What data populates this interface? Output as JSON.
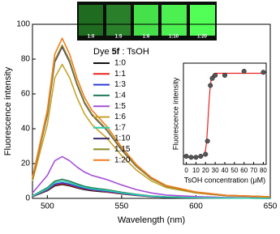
{
  "chart_data": [
    {
      "type": "line",
      "x_label": "Wavelength (nm)",
      "y_label": "Fluorescence intensity",
      "xlim": [
        490,
        650
      ],
      "xticks": [
        500,
        550,
        600,
        650
      ],
      "ylim": [
        0,
        100
      ],
      "yticks": [
        0,
        20,
        40,
        60,
        80,
        100
      ],
      "legend_title": {
        "prefix": "Dye",
        "bold": "5f",
        "suffix": ": TsOH"
      },
      "photo_labels": [
        "1:0",
        "1:5",
        "1:6",
        "1:10",
        "1:20"
      ],
      "x": [
        490,
        500,
        505,
        510,
        515,
        520,
        525,
        530,
        535,
        540,
        550,
        560,
        570,
        580,
        600,
        620,
        650
      ],
      "series": [
        {
          "name": "1:0",
          "color": "#111111",
          "values": [
            1,
            4.4,
            7.2,
            8,
            7.2,
            6,
            5,
            4.4,
            4,
            3.6,
            2.6,
            1.7,
            1,
            0.6,
            0.3,
            0.2,
            0.1
          ]
        },
        {
          "name": "1:1",
          "color": "#e8231f",
          "values": [
            1.1,
            4.7,
            7.7,
            8.5,
            7.7,
            6.4,
            5.4,
            4.7,
            4.3,
            3.8,
            2.7,
            1.8,
            1.1,
            0.7,
            0.3,
            0.2,
            0.1
          ]
        },
        {
          "name": "1:3",
          "color": "#2b3bd9",
          "values": [
            1.2,
            5,
            8.1,
            9,
            8.1,
            6.8,
            5.7,
            5,
            4.5,
            4.1,
            2.9,
            1.9,
            1.2,
            0.7,
            0.4,
            0.2,
            0.1
          ]
        },
        {
          "name": "1:4",
          "color": "#1f7a5a",
          "values": [
            1.4,
            6.1,
            9.9,
            11,
            9.9,
            8.3,
            6.9,
            6.1,
            5.5,
            5,
            3.5,
            2.3,
            1.4,
            0.9,
            0.4,
            0.2,
            0.1
          ]
        },
        {
          "name": "1:5",
          "color": "#a64fd8",
          "values": [
            3.1,
            13.2,
            21.6,
            24,
            21.6,
            18,
            15.1,
            13.2,
            12,
            10.8,
            7.7,
            5,
            3.1,
            1.9,
            1,
            0.5,
            0.2
          ]
        },
        {
          "name": "1:6",
          "color": "#c8a227",
          "values": [
            10,
            42.4,
            69.3,
            77,
            69.3,
            57.8,
            48.5,
            42.4,
            38.5,
            34.7,
            24.6,
            16.2,
            10,
            6.2,
            3.1,
            1.5,
            0.8
          ]
        },
        {
          "name": "1:7",
          "color": "#2fcfa8",
          "values": [
            1.3,
            5.5,
            9,
            10,
            9,
            7.5,
            6.3,
            5.5,
            5,
            4.5,
            3.2,
            2.1,
            1.3,
            0.8,
            0.4,
            0.2,
            0.1
          ]
        },
        {
          "name": "1:10",
          "color": "#3a2a6e",
          "values": [
            11.3,
            47.9,
            78.3,
            87,
            78.3,
            65.3,
            54.8,
            47.9,
            43.5,
            39.2,
            27.8,
            18.3,
            11.3,
            7,
            3.5,
            1.7,
            0.9
          ]
        },
        {
          "name": "1:15",
          "color": "#8a8a2a",
          "values": [
            11.4,
            48.4,
            79.2,
            88,
            79.2,
            66,
            55.4,
            48.4,
            44,
            39.6,
            28.2,
            18.5,
            11.4,
            7,
            3.5,
            1.8,
            0.9
          ]
        },
        {
          "name": "1:20",
          "color": "#f07f1e",
          "values": [
            12,
            50.6,
            82.8,
            92,
            82.8,
            69,
            58,
            50.6,
            46,
            41.4,
            29.4,
            19.3,
            12,
            7.4,
            3.7,
            1.8,
            0.9
          ]
        }
      ]
    },
    {
      "type": "scatter",
      "x_label": "TsOH concentration (μM)",
      "y_label": "Fluorescence intensity",
      "xlim": [
        -3,
        83
      ],
      "xticks": [
        0,
        10,
        20,
        30,
        40,
        50,
        60,
        70,
        80
      ],
      "ylim": [
        0,
        100
      ],
      "points": {
        "color": "#555555",
        "x": [
          0,
          5,
          10,
          15,
          20,
          22,
          25,
          27,
          30,
          40,
          60,
          80
        ],
        "values": [
          8,
          7,
          7,
          8,
          10,
          23,
          78,
          85,
          88,
          88,
          92,
          91
        ]
      },
      "fit": {
        "color": "#e8231f",
        "x": [
          0,
          10,
          15,
          18,
          20,
          21,
          22,
          23,
          24,
          25,
          26,
          28,
          30,
          40,
          80
        ],
        "values": [
          7,
          7,
          7.5,
          9,
          14,
          22,
          35,
          52,
          67,
          78,
          85,
          89,
          90,
          90,
          90
        ]
      }
    }
  ]
}
